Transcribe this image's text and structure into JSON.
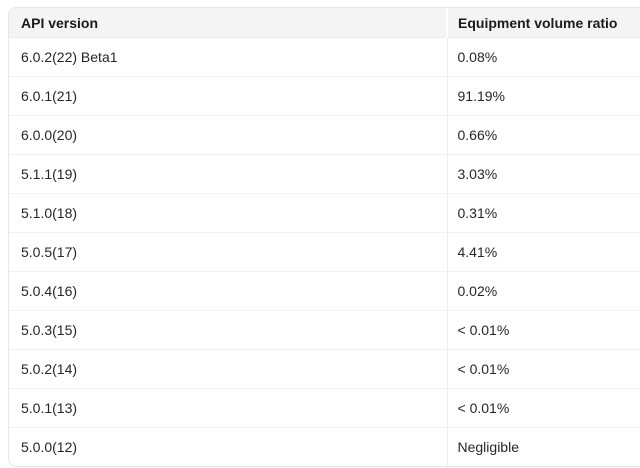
{
  "table": {
    "columns": [
      {
        "key": "version",
        "label": "API version"
      },
      {
        "key": "ratio",
        "label": "Equipment volume ratio"
      }
    ],
    "rows": [
      {
        "version": "6.0.2(22) Beta1",
        "ratio": "0.08%"
      },
      {
        "version": "6.0.1(21)",
        "ratio": "91.19%"
      },
      {
        "version": "6.0.0(20)",
        "ratio": "0.66%"
      },
      {
        "version": "5.1.1(19)",
        "ratio": "3.03%"
      },
      {
        "version": "5.1.0(18)",
        "ratio": "0.31%"
      },
      {
        "version": "5.0.5(17)",
        "ratio": "4.41%"
      },
      {
        "version": "5.0.4(16)",
        "ratio": "0.02%"
      },
      {
        "version": "5.0.3(15)",
        "ratio": "< 0.01%"
      },
      {
        "version": "5.0.2(14)",
        "ratio": "< 0.01%"
      },
      {
        "version": "5.0.1(13)",
        "ratio": "< 0.01%"
      },
      {
        "version": "5.0.0(12)",
        "ratio": "Negligible"
      }
    ]
  },
  "colors": {
    "header_bg": "#f4f4f4",
    "row_bg": "#ffffff",
    "card_border": "#e6e6e6",
    "row_divider": "#f0f0f0",
    "column_divider": "#ededed",
    "header_text": "#1b1b1b",
    "body_text": "#262626"
  }
}
